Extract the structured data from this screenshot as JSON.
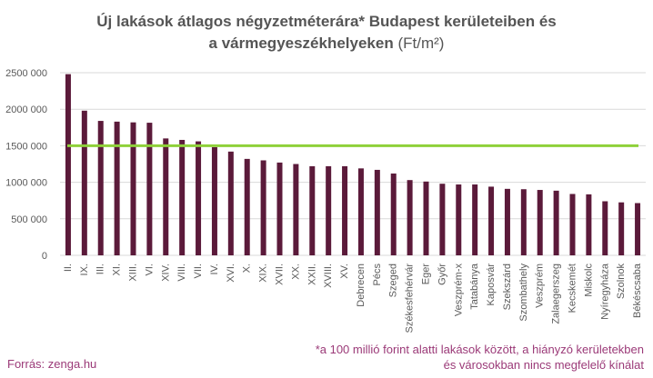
{
  "title": {
    "line1": "Új lakások átlagos négyzetméterára* Budapest kerületeiben és",
    "line2": "a vármegyeszékhelyeken",
    "unit": "(Ft/m²)"
  },
  "source": "Forrás: zenga.hu",
  "footnote": {
    "line1": "*a 100 millió forint alatti lakások között, a hiányzó kerületekben",
    "line2": "és városokban nincs megfelelő kínálat"
  },
  "colors": {
    "bar": "#5b1a3a",
    "reference_line": "#8fd13a",
    "grid": "#d9d9d9",
    "text": "#595959",
    "accent_text": "#9b3a78"
  },
  "chart_data": {
    "type": "bar",
    "categories": [
      "II.",
      "IX.",
      "III.",
      "XI.",
      "XIII.",
      "VI.",
      "XIV.",
      "VIII.",
      "VII.",
      "IV.",
      "XVI.",
      "X.",
      "XIX.",
      "XVII.",
      "XX.",
      "XXII.",
      "XVIII.",
      "XV.",
      "Debrecen",
      "Pécs",
      "Szeged",
      "Székesfehérvár",
      "Eger",
      "Győr",
      "Veszprém-x",
      "Tatabánya",
      "Kaposvár",
      "Szekszárd",
      "Szombathely",
      "Veszprém",
      "Zalaegerszeg",
      "Kecskemét",
      "Miskolc",
      "Nyíregyháza",
      "Szolnok",
      "Békéscsaba"
    ],
    "values": [
      2480000,
      1980000,
      1840000,
      1830000,
      1820000,
      1815000,
      1600000,
      1580000,
      1560000,
      1480000,
      1420000,
      1320000,
      1300000,
      1270000,
      1250000,
      1220000,
      1220000,
      1220000,
      1190000,
      1170000,
      1120000,
      1030000,
      1010000,
      980000,
      970000,
      970000,
      940000,
      910000,
      905000,
      895000,
      885000,
      840000,
      835000,
      740000,
      725000,
      715000
    ],
    "reference_line": 1500000,
    "ylim": [
      0,
      2500000
    ],
    "yticks": [
      0,
      500000,
      1000000,
      1500000,
      2000000,
      2500000
    ],
    "ytick_labels": [
      "0",
      "500 000",
      "1000 000",
      "1500 000",
      "2000 000",
      "2500 000"
    ],
    "grid": true,
    "legend": "none"
  }
}
